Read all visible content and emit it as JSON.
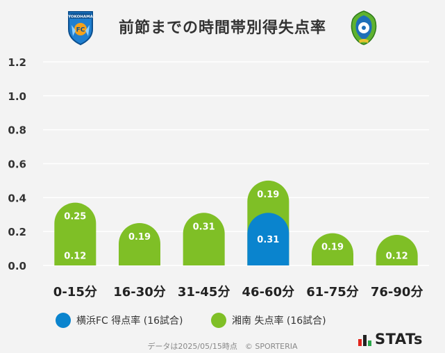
{
  "title": "前節までの時間帯別得失点率",
  "footer": "データは2025/05/15時点　© SPORTERIA",
  "brand": "STATs",
  "colors": {
    "blue": "#0a84ce",
    "green": "#7fbf26",
    "grid": "#ffffff",
    "background": "#f3f3f3"
  },
  "logos": {
    "left": "yokohama-fc-crest",
    "left_text": "YOKOHAMA",
    "left_badge": "FC",
    "right": "shonan-bellmare-crest"
  },
  "chart_data": {
    "type": "bar",
    "categories": [
      "0-15分",
      "16-30分",
      "31-45分",
      "46-60分",
      "61-75分",
      "76-90分"
    ],
    "series": [
      {
        "name": "横浜FC 得点率 (16試合)",
        "color": "#0a84ce",
        "values": [
          0.12,
          0.06,
          0,
          0.31,
          0,
          0.12
        ],
        "labels": [
          "0.12",
          "",
          "",
          "0.31",
          "",
          "0.12"
        ]
      },
      {
        "name": "湘南 失点率 (16試合)",
        "color": "#7fbf26",
        "values": [
          0.25,
          0.19,
          0.31,
          0.19,
          0.19,
          0.06
        ],
        "labels": [
          "0.25",
          "0.19",
          "0.31",
          "0.19",
          "0.19",
          ""
        ]
      }
    ],
    "yticks": [
      "0.0",
      "0.2",
      "0.4",
      "0.6",
      "0.8",
      "1.0",
      "1.2"
    ],
    "ylim": [
      0,
      1.2
    ],
    "grid": true,
    "stacked": true,
    "legend_position": "bottom"
  }
}
